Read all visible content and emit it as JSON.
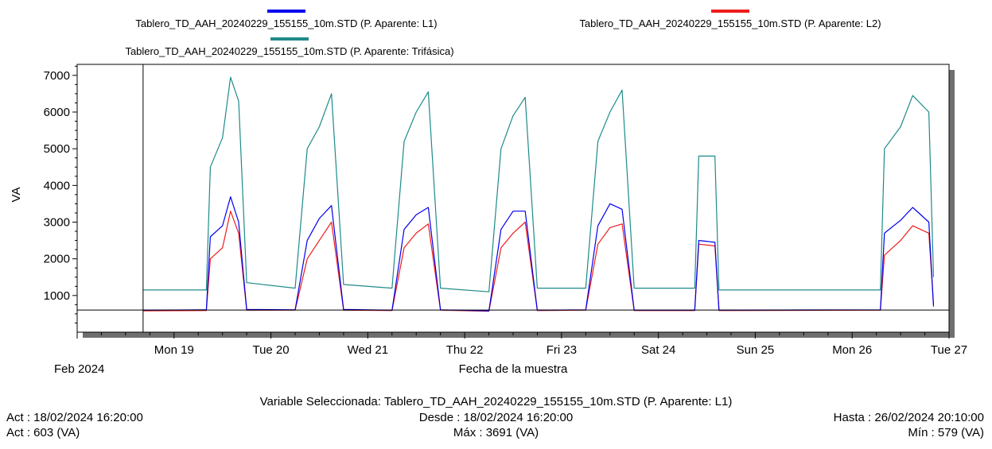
{
  "chart_data": {
    "type": "line",
    "xlabel": "Fecha de la muestra",
    "ylabel": "VA",
    "ylim": [
      0,
      7300
    ],
    "xlim_days": [
      "2024-02-18",
      "2024-02-27"
    ],
    "yticks": [
      1000,
      2000,
      3000,
      4000,
      5000,
      6000,
      7000
    ],
    "reference_line_y": 603,
    "x_ticks": [
      {
        "date": "2024-02-19",
        "label": "Mon 19"
      },
      {
        "date": "2024-02-20",
        "label": "Tue 20"
      },
      {
        "date": "2024-02-21",
        "label": "Wed 21"
      },
      {
        "date": "2024-02-22",
        "label": "Thu 22"
      },
      {
        "date": "2024-02-23",
        "label": "Fri 23"
      },
      {
        "date": "2024-02-24",
        "label": "Sat 24"
      },
      {
        "date": "2024-02-25",
        "label": "Sun 25"
      },
      {
        "date": "2024-02-26",
        "label": "Mon 26"
      },
      {
        "date": "2024-02-27",
        "label": "Tue 27"
      }
    ],
    "x_sublabel": "Feb 2024",
    "grid": false,
    "legend_position": "top",
    "series": [
      {
        "name": "Tablero_TD_AAH_20240229_155155_10m.STD (P. Aparente: L1)",
        "color": "#0000ee",
        "x": [
          "2024-02-18 16:20",
          "2024-02-19 08:00",
          "2024-02-19 09:00",
          "2024-02-19 12:00",
          "2024-02-19 14:00",
          "2024-02-19 16:00",
          "2024-02-19 18:00",
          "2024-02-20 06:00",
          "2024-02-20 09:00",
          "2024-02-20 12:00",
          "2024-02-20 15:00",
          "2024-02-20 18:00",
          "2024-02-21 06:00",
          "2024-02-21 09:00",
          "2024-02-21 12:00",
          "2024-02-21 15:00",
          "2024-02-21 18:00",
          "2024-02-22 06:00",
          "2024-02-22 09:00",
          "2024-02-22 12:00",
          "2024-02-22 15:00",
          "2024-02-22 18:00",
          "2024-02-23 06:00",
          "2024-02-23 09:00",
          "2024-02-23 12:00",
          "2024-02-23 15:00",
          "2024-02-23 18:00",
          "2024-02-24 09:00",
          "2024-02-24 10:00",
          "2024-02-24 14:00",
          "2024-02-24 15:00",
          "2024-02-26 07:00",
          "2024-02-26 08:00",
          "2024-02-26 12:00",
          "2024-02-26 15:00",
          "2024-02-26 19:00",
          "2024-02-26 20:10"
        ],
        "y": [
          600,
          610,
          2600,
          2900,
          3691,
          3000,
          620,
          610,
          2500,
          3100,
          3450,
          620,
          600,
          2800,
          3200,
          3400,
          610,
          580,
          2800,
          3300,
          3300,
          600,
          610,
          2900,
          3500,
          3350,
          600,
          600,
          2500,
          2450,
          600,
          610,
          2700,
          3050,
          3400,
          3000,
          700
        ]
      },
      {
        "name": "Tablero_TD_AAH_20240229_155155_10m.STD (P. Aparente: L2)",
        "color": "#ee1c1c",
        "x": [
          "2024-02-18 16:20",
          "2024-02-19 08:00",
          "2024-02-19 09:00",
          "2024-02-19 12:00",
          "2024-02-19 14:00",
          "2024-02-19 16:00",
          "2024-02-19 18:00",
          "2024-02-20 06:00",
          "2024-02-20 09:00",
          "2024-02-20 12:00",
          "2024-02-20 15:00",
          "2024-02-20 18:00",
          "2024-02-21 06:00",
          "2024-02-21 09:00",
          "2024-02-21 12:00",
          "2024-02-21 15:00",
          "2024-02-21 18:00",
          "2024-02-22 06:00",
          "2024-02-22 09:00",
          "2024-02-22 12:00",
          "2024-02-22 15:00",
          "2024-02-22 18:00",
          "2024-02-23 06:00",
          "2024-02-23 09:00",
          "2024-02-23 12:00",
          "2024-02-23 15:00",
          "2024-02-23 18:00",
          "2024-02-24 09:00",
          "2024-02-24 10:00",
          "2024-02-24 14:00",
          "2024-02-24 15:00",
          "2024-02-26 07:00",
          "2024-02-26 08:00",
          "2024-02-26 12:00",
          "2024-02-26 15:00",
          "2024-02-26 19:00",
          "2024-02-26 20:10"
        ],
        "y": [
          580,
          590,
          2000,
          2300,
          3300,
          2700,
          600,
          600,
          2000,
          2500,
          3000,
          600,
          590,
          2300,
          2700,
          2950,
          600,
          570,
          2300,
          2700,
          3000,
          590,
          600,
          2400,
          2850,
          2950,
          590,
          590,
          2400,
          2350,
          590,
          600,
          2100,
          2500,
          2900,
          2700,
          760
        ]
      },
      {
        "name": "Tablero_TD_AAH_20240229_155155_10m.STD (P. Aparente: Trifásica)",
        "color": "#1f8a8a",
        "x": [
          "2024-02-18 16:20",
          "2024-02-19 08:00",
          "2024-02-19 09:00",
          "2024-02-19 12:00",
          "2024-02-19 14:00",
          "2024-02-19 16:00",
          "2024-02-19 18:00",
          "2024-02-20 06:00",
          "2024-02-20 09:00",
          "2024-02-20 12:00",
          "2024-02-20 15:00",
          "2024-02-20 18:00",
          "2024-02-21 06:00",
          "2024-02-21 09:00",
          "2024-02-21 12:00",
          "2024-02-21 15:00",
          "2024-02-21 18:00",
          "2024-02-22 06:00",
          "2024-02-22 09:00",
          "2024-02-22 12:00",
          "2024-02-22 15:00",
          "2024-02-22 18:00",
          "2024-02-23 06:00",
          "2024-02-23 09:00",
          "2024-02-23 12:00",
          "2024-02-23 15:00",
          "2024-02-23 18:00",
          "2024-02-24 09:00",
          "2024-02-24 10:00",
          "2024-02-24 14:00",
          "2024-02-24 15:00",
          "2024-02-26 07:00",
          "2024-02-26 08:00",
          "2024-02-26 12:00",
          "2024-02-26 15:00",
          "2024-02-26 19:00",
          "2024-02-26 20:10"
        ],
        "y": [
          1150,
          1150,
          4500,
          5300,
          6950,
          6300,
          1350,
          1200,
          5000,
          5600,
          6500,
          1300,
          1200,
          5200,
          6000,
          6550,
          1200,
          1100,
          5000,
          5900,
          6400,
          1200,
          1200,
          5200,
          6000,
          6600,
          1200,
          1200,
          4800,
          4800,
          1150,
          1150,
          5000,
          5600,
          6450,
          6000,
          1500
        ]
      }
    ]
  },
  "info": {
    "selected_variable": "Variable Seleccionada: Tablero_TD_AAH_20240229_155155_10m.STD (P. Aparente: L1)",
    "act_date": "Act : 18/02/2024 16:20:00",
    "act_value": "Act : 603 (VA)",
    "desde": "Desde : 18/02/2024 16:20:00",
    "max": "Máx : 3691 (VA)",
    "hasta": "Hasta : 26/02/2024 20:10:00",
    "min": "Mín : 579 (VA)"
  }
}
